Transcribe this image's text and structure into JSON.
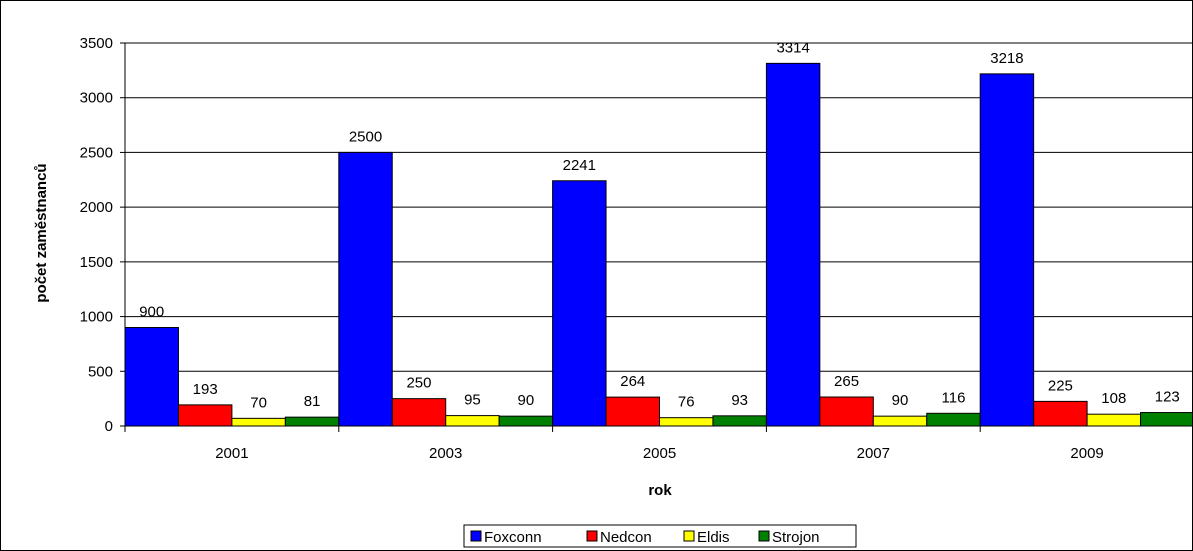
{
  "chart_data": {
    "type": "bar",
    "categories": [
      "2001",
      "2003",
      "2005",
      "2007",
      "2009"
    ],
    "series": [
      {
        "name": "Foxconn",
        "values": [
          900,
          2500,
          2241,
          3314,
          3218
        ],
        "color": "#0000FF"
      },
      {
        "name": "Nedcon",
        "values": [
          193,
          250,
          264,
          265,
          225
        ],
        "color": "#FF0000"
      },
      {
        "name": "Eldis",
        "values": [
          70,
          95,
          76,
          90,
          108
        ],
        "color": "#FFFF00"
      },
      {
        "name": "Strojon",
        "values": [
          81,
          90,
          93,
          116,
          123
        ],
        "color": "#008000"
      }
    ],
    "xlabel": "rok",
    "ylabel": "počet zaměstnanců",
    "ylim": [
      0,
      3500
    ],
    "yticks": [
      0,
      500,
      1000,
      1500,
      2000,
      2500,
      3000,
      3500
    ],
    "grid": true,
    "legend_position": "bottom",
    "data_labels": true
  }
}
